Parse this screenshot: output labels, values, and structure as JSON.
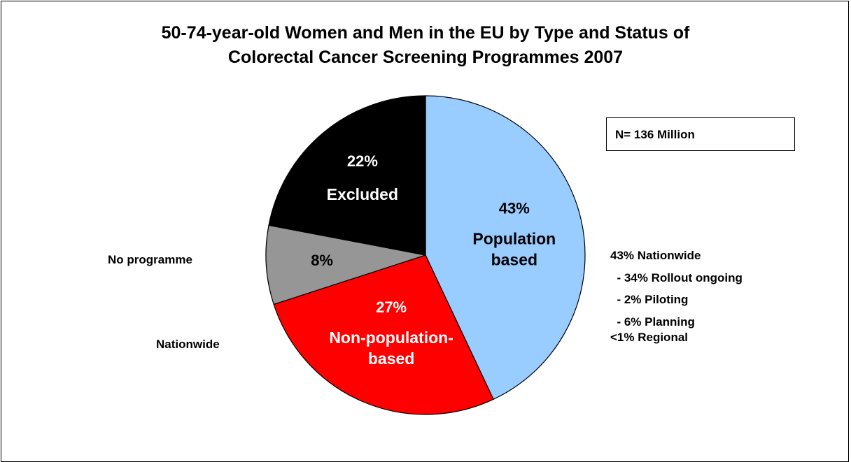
{
  "chart_data": {
    "type": "pie",
    "title_lines": [
      "50-74-year-old Women and Men in the EU by Type and Status of",
      "Colorectal Cancer Screening Programmes 2007"
    ],
    "slices": [
      {
        "percent_label": "43%",
        "value": 43,
        "lines": [
          "Population",
          "based"
        ],
        "color": "#99CCFF",
        "text_color": "#000000"
      },
      {
        "percent_label": "27%",
        "value": 27,
        "lines": [
          "Non-population-",
          "based"
        ],
        "color": "#FF0000",
        "text_color": "#FFFFFF"
      },
      {
        "percent_label": "8%",
        "value": 8,
        "lines": [],
        "color": "#969696",
        "text_color": "#000000"
      },
      {
        "percent_label": "22%",
        "value": 22,
        "lines": [
          "Excluded"
        ],
        "color": "#000000",
        "text_color": "#FFFFFF"
      }
    ],
    "note": "N= 136 Million",
    "annotations": {
      "right": [
        "43% Nationwide",
        "  - 34% Rollout ongoing",
        "  - 2% Piloting",
        "  - 6% Planning",
        "<1% Regional"
      ],
      "left_upper": "No programme",
      "left_lower": "Nationwide"
    }
  }
}
